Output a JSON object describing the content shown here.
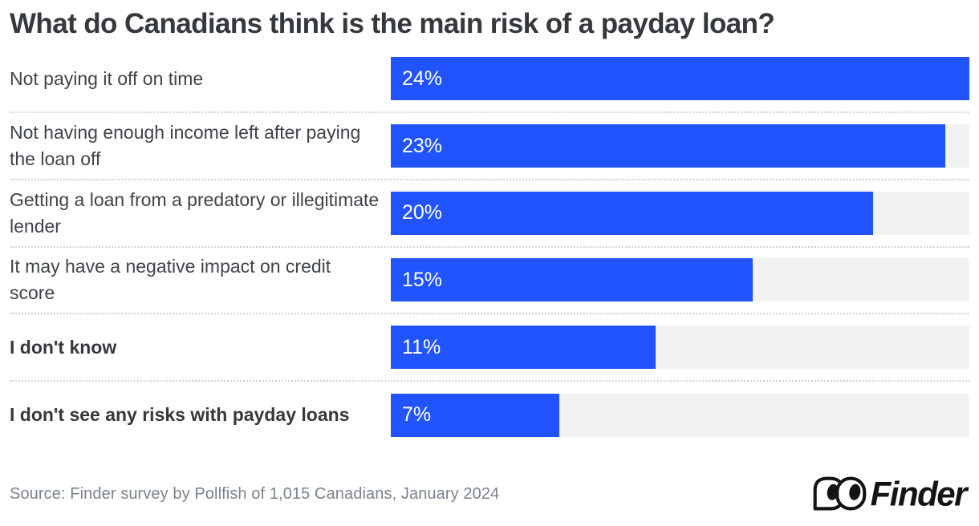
{
  "title": "What do Canadians think is the main risk of a payday loan?",
  "chart_data": {
    "type": "bar",
    "orientation": "horizontal",
    "title": "What do Canadians think is the main risk of a payday loan?",
    "categories": [
      "Not paying it off on time",
      "Not having enough income left after paying the loan off",
      "Getting a loan from a predatory or illegitimate lender",
      "It may have a negative impact on credit score",
      "I don't know",
      "I don't see any risks with payday loans"
    ],
    "values": [
      24,
      23,
      20,
      15,
      11,
      7
    ],
    "value_labels": [
      "24%",
      "23%",
      "20%",
      "15%",
      "11%",
      "7%"
    ],
    "bold_flags": [
      false,
      false,
      false,
      false,
      true,
      true
    ],
    "xlim": [
      0,
      24
    ],
    "bar_color": "#2154fe",
    "track_color": "#f2f2f3",
    "separator_style": "dotted",
    "value_label_position": "inside-left",
    "legend": "none",
    "grid": "off"
  },
  "footer": {
    "source": "Source: Finder survey by Pollfish of 1,015 Canadians, January 2024",
    "logo_text": "Finder",
    "logo_icon": "finder-eyes-icon"
  },
  "colors": {
    "accent_blue": "#2154fe",
    "track_gray": "#f2f2f3",
    "title_text": "#35383d",
    "label_text": "#3f434a",
    "source_text": "#7b838c",
    "separator": "#d2d2d2",
    "logo_black": "#141414"
  }
}
